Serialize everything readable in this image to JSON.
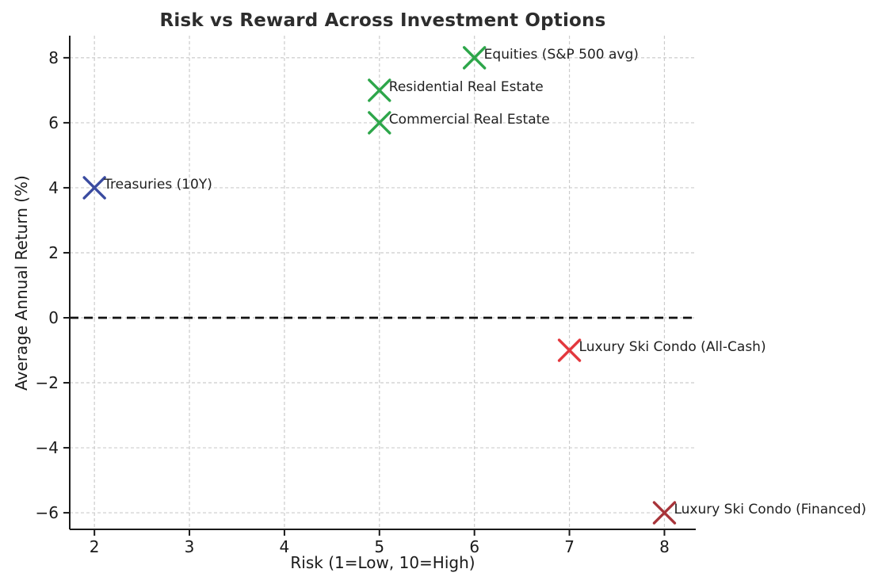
{
  "chart_data": {
    "type": "scatter",
    "title": "Risk vs Reward Across Investment Options",
    "xlabel": "Risk (1=Low, 10=High)",
    "ylabel": "Average Annual Return (%)",
    "xlim": [
      1.74,
      8.33
    ],
    "ylim": [
      -6.51,
      8.68
    ],
    "grid": true,
    "legend": "none",
    "marker": "x",
    "xticks": [
      {
        "value": 2,
        "label": "2"
      },
      {
        "value": 3,
        "label": "3"
      },
      {
        "value": 4,
        "label": "4"
      },
      {
        "value": 5,
        "label": "5"
      },
      {
        "value": 6,
        "label": "6"
      },
      {
        "value": 7,
        "label": "7"
      },
      {
        "value": 8,
        "label": "8"
      }
    ],
    "yticks": [
      {
        "value": 8,
        "label": "8"
      },
      {
        "value": 6,
        "label": "6"
      },
      {
        "value": 4,
        "label": "4"
      },
      {
        "value": 2,
        "label": "2"
      },
      {
        "value": 0,
        "label": "0"
      },
      {
        "value": -2,
        "label": "−2"
      },
      {
        "value": -4,
        "label": "−4"
      },
      {
        "value": -6,
        "label": "−6"
      }
    ],
    "reference_line": {
      "y": 0,
      "style": "dashed",
      "color": "#111111"
    },
    "points": [
      {
        "label": "Treasuries (10Y)",
        "x": 2,
        "y": 4,
        "color": "#3a4ba0"
      },
      {
        "label": "Residential Real Estate",
        "x": 5,
        "y": 7,
        "color": "#2da64a"
      },
      {
        "label": "Commercial Real Estate",
        "x": 5,
        "y": 6,
        "color": "#2da64a"
      },
      {
        "label": "Equities (S&P 500 avg)",
        "x": 6,
        "y": 8,
        "color": "#2da64a"
      },
      {
        "label": "Luxury Ski Condo (All-Cash)",
        "x": 7,
        "y": -1,
        "color": "#e3383e"
      },
      {
        "label": "Luxury Ski Condo (Financed)",
        "x": 8,
        "y": -6,
        "color": "#a8343a"
      }
    ],
    "colors": {
      "grid": "#cccccc",
      "axis": "#1a1a1a",
      "tick_text": "#1a1a1a",
      "annotation_text": "#1f1f1f",
      "title_text": "#2d2d2d"
    }
  }
}
